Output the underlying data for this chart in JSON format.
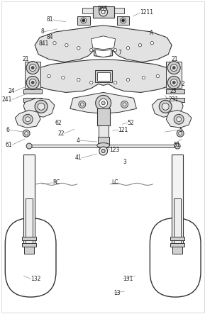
{
  "bg_color": "#ffffff",
  "line_color": "#555555",
  "dark_line": "#333333",
  "light_line": "#888888",
  "fill_light": "#e8e8e8",
  "fill_mid": "#d0d0d0",
  "fill_dark": "#b0b0b0",
  "figsize": [
    2.89,
    4.43
  ],
  "dpi": 100,
  "labels": {
    "865": [
      144,
      12,
      "center"
    ],
    "1211": [
      197,
      17,
      "left"
    ],
    "81": [
      74,
      27,
      "right"
    ],
    "8": [
      61,
      44,
      "right"
    ],
    "84": [
      74,
      52,
      "right"
    ],
    "841": [
      68,
      61,
      "right"
    ],
    "A": [
      211,
      46,
      "left"
    ],
    "7": [
      166,
      74,
      "left"
    ],
    "21L": [
      40,
      83,
      "right"
    ],
    "21R": [
      241,
      83,
      "left"
    ],
    "2": [
      255,
      118,
      "left"
    ],
    "24": [
      20,
      128,
      "right"
    ],
    "23": [
      239,
      128,
      "left"
    ],
    "241": [
      16,
      140,
      "right"
    ],
    "231": [
      237,
      140,
      "left"
    ],
    "62": [
      86,
      173,
      "right"
    ],
    "22": [
      90,
      188,
      "right"
    ],
    "52": [
      179,
      173,
      "left"
    ],
    "121": [
      166,
      183,
      "left"
    ],
    "6": [
      12,
      183,
      "right"
    ],
    "5": [
      252,
      183,
      "left"
    ],
    "61": [
      16,
      204,
      "right"
    ],
    "51": [
      244,
      204,
      "left"
    ],
    "4": [
      112,
      198,
      "right"
    ],
    "41": [
      114,
      223,
      "right"
    ],
    "123": [
      154,
      211,
      "left"
    ],
    "3": [
      173,
      229,
      "left"
    ],
    "RC": [
      80,
      263,
      "left"
    ],
    "LC": [
      157,
      263,
      "left"
    ],
    "132": [
      56,
      394,
      "center"
    ],
    "131": [
      173,
      394,
      "left"
    ],
    "13": [
      160,
      414,
      "left"
    ]
  }
}
